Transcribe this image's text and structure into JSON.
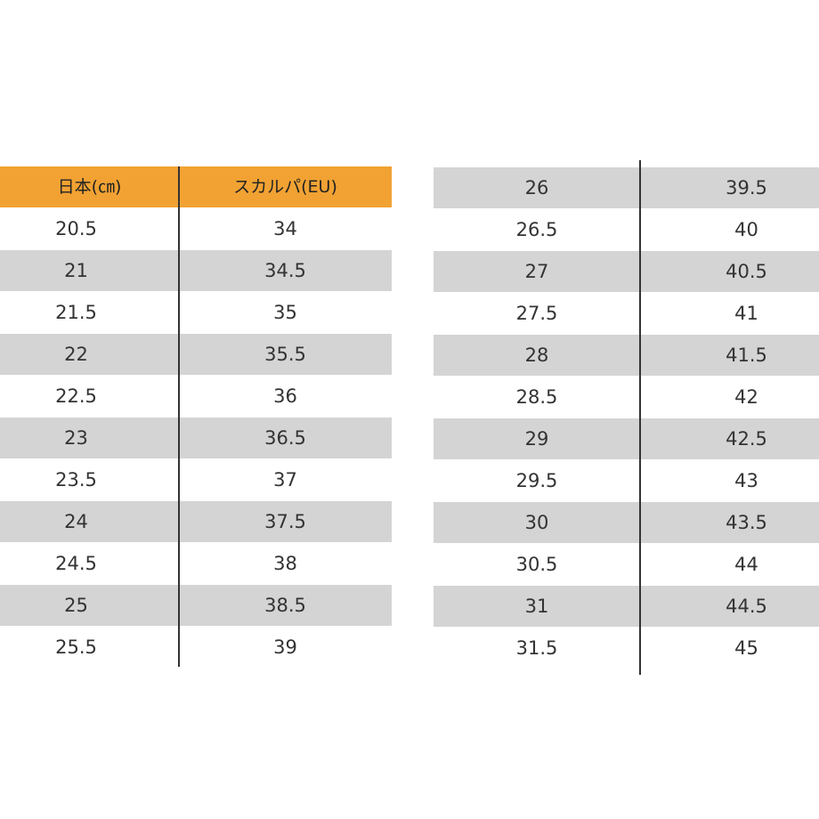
{
  "left_table": {
    "header": [
      "日本(㎝)",
      "スカルパ(EU)"
    ],
    "rows": [
      [
        "20.5",
        "34"
      ],
      [
        "21",
        "34.5"
      ],
      [
        "21.5",
        "35"
      ],
      [
        "22",
        "35.5"
      ],
      [
        "22.5",
        "36"
      ],
      [
        "23",
        "36.5"
      ],
      [
        "23.5",
        "37"
      ],
      [
        "24",
        "37.5"
      ],
      [
        "24.5",
        "38"
      ],
      [
        "25",
        "38.5"
      ],
      [
        "25.5",
        "39"
      ]
    ]
  },
  "right_table": {
    "rows": [
      [
        "26",
        "39.5"
      ],
      [
        "26.5",
        "40"
      ],
      [
        "27",
        "40.5"
      ],
      [
        "27.5",
        "41"
      ],
      [
        "28",
        "41.5"
      ],
      [
        "28.5",
        "42"
      ],
      [
        "29",
        "42.5"
      ],
      [
        "29.5",
        "43"
      ],
      [
        "30",
        "43.5"
      ],
      [
        "30.5",
        "44"
      ],
      [
        "31",
        "44.5"
      ],
      [
        "31.5",
        "45"
      ]
    ]
  }
}
